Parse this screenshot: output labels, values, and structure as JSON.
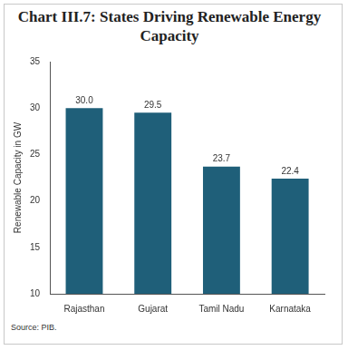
{
  "chart_data": {
    "type": "bar",
    "title": "Chart III.7: States Driving Renewable Energy Capacity",
    "y_label": "Renewable Capacity in GW",
    "source": "Source: PIB.",
    "categories": [
      "Rajasthan",
      "Gujarat",
      "Tamil Nadu",
      "Karnataka"
    ],
    "values": [
      30.0,
      29.5,
      23.7,
      22.4
    ],
    "value_labels": [
      "30.0",
      "29.5",
      "23.7",
      "22.4"
    ],
    "color": "#1f5f79",
    "ylim": [
      10,
      35
    ],
    "yticks": [
      10,
      15,
      20,
      25,
      30,
      35
    ],
    "grid": false,
    "data_labels": true
  }
}
